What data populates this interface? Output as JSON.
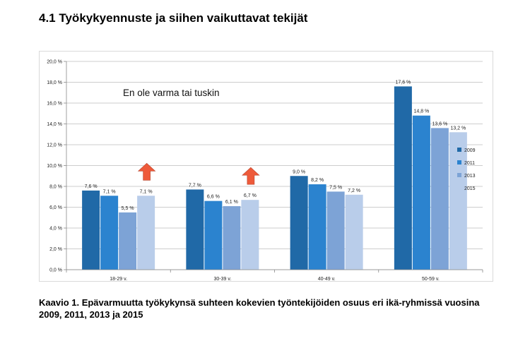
{
  "heading": "4.1 Työkykyennuste ja siihen vaikuttavat tekijät",
  "caption": "Kaavio 1. Epävarmuutta työkykynsä suhteen kokevien työntekijöiden osuus eri ikä-ryhmissä vuosina 2009, 2011, 2013 ja 2015",
  "colors": {
    "s2009": "#2069a7",
    "s2011": "#2b83cf",
    "s2013": "#7da3d6",
    "s2015": "#b9cdea",
    "arrow": "#ee5a3a"
  },
  "chart_data": {
    "type": "bar",
    "annotation": "En ole varma tai tuskin",
    "categories": [
      "18-29 v.",
      "30-39 v.",
      "40-49 v.",
      "50-59 v."
    ],
    "series": [
      {
        "name": "2009",
        "values": [
          7.6,
          7.7,
          9.0,
          17.6
        ],
        "labels": [
          "7,6 %",
          "7,7 %",
          "9,0 %",
          "17,6 %"
        ]
      },
      {
        "name": "2011",
        "values": [
          7.1,
          6.6,
          8.2,
          14.8
        ],
        "labels": [
          "7,1 %",
          "6,6 %",
          "8,2 %",
          "14,8 %"
        ]
      },
      {
        "name": "2013",
        "values": [
          5.5,
          6.1,
          7.5,
          13.6
        ],
        "labels": [
          "5,5 %",
          "6,1 %",
          "7,5 %",
          "13,6 %"
        ]
      },
      {
        "name": "2015",
        "values": [
          7.1,
          6.7,
          7.2,
          13.2
        ],
        "labels": [
          "7,1 %",
          "6,7 %",
          "7,2 %",
          "13,2 %"
        ]
      }
    ],
    "yticks": [
      0,
      2,
      4,
      6,
      8,
      10,
      12,
      14,
      16,
      18,
      20
    ],
    "ytick_labels": [
      "0,0 %",
      "2,0 %",
      "4,0 %",
      "6,0 %",
      "8,0 %",
      "10,0 %",
      "12,0 %",
      "14,0 %",
      "16,0 %",
      "18,0 %",
      "20,0 %"
    ],
    "ylim": [
      0,
      20
    ],
    "grid": true,
    "legend": "right",
    "up_arrows_on_categories": [
      "18-29 v.",
      "30-39 v."
    ]
  }
}
